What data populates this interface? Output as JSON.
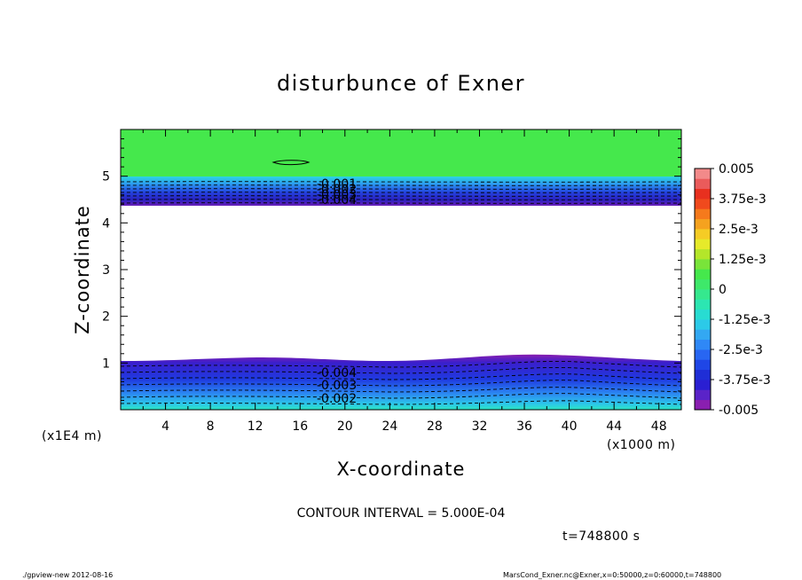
{
  "chart_data": {
    "type": "heatmap",
    "title": "disturbunce of Exner",
    "xlabel": "X-coordinate",
    "ylabel": "Z-coordinate",
    "xlim": [
      0,
      50000
    ],
    "ylim": [
      0,
      60000
    ],
    "x_scale_note": "(x1000 m)",
    "y_scale_note": "(x1E4 m)",
    "x_ticks": [
      "4",
      "8",
      "12",
      "16",
      "20",
      "24",
      "28",
      "32",
      "36",
      "40",
      "44",
      "48"
    ],
    "y_ticks": [
      "1",
      "2",
      "3",
      "4",
      "5"
    ],
    "colorbar": {
      "range": [
        -0.005,
        0.005
      ],
      "labels": [
        "0.005",
        "3.75e-3",
        "2.5e-3",
        "1.25e-3",
        "0",
        "-1.25e-3",
        "-2.5e-3",
        "-3.75e-3",
        "-0.005"
      ],
      "colors": [
        "#8a1fb0",
        "#5a23c8",
        "#2a1fd2",
        "#1f2ed6",
        "#1f46e6",
        "#2866f2",
        "#2f88f6",
        "#33a8f2",
        "#2ccae8",
        "#28dcd2",
        "#2ce6b2",
        "#35e88e",
        "#3ee86a",
        "#45e84c",
        "#79e43a",
        "#b4e62a",
        "#e6ea2a",
        "#f5cc25",
        "#f5a21f",
        "#f57a1c",
        "#f04a1d",
        "#e8301f",
        "#ea5b5b",
        "#f28a8a"
      ]
    },
    "contour_labels_upper": [
      "-0.001",
      "-0.002",
      "-0.003",
      "-0.004"
    ],
    "contour_labels_lower": [
      "-0.004",
      "-0.003",
      "-0.002"
    ],
    "contour_interval": "CONTOUR INTERVAL = 5.000E-04",
    "time": "t=748800 s"
  },
  "footer": {
    "left": "./gpview-new  2012-08-16",
    "right": "MarsCond_Exner.nc@Exner,x=0:50000,z=0:60000,t=748800"
  }
}
